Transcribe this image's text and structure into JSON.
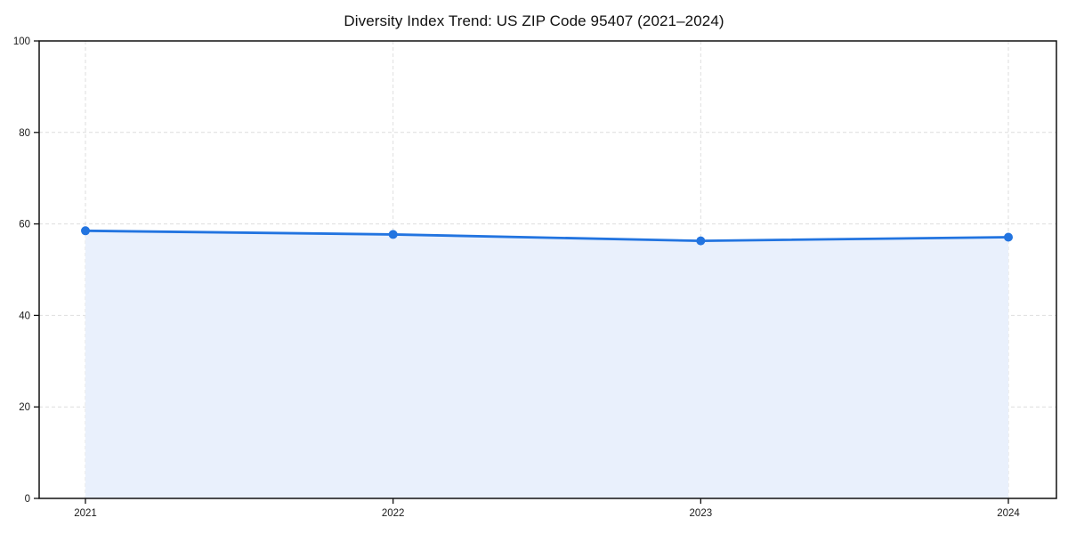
{
  "chart_data": {
    "type": "area",
    "title": "Diversity Index Trend: US ZIP Code 95407 (2021–2024)",
    "x": [
      2021,
      2022,
      2023,
      2024
    ],
    "xtick_labels": [
      "2021",
      "2022",
      "2023",
      "2024"
    ],
    "series": [
      {
        "name": "Diversity Index",
        "values": [
          58.5,
          57.7,
          56.3,
          57.1
        ]
      }
    ],
    "xlabel": "",
    "ylabel": "",
    "ylim": [
      0,
      100
    ],
    "yticks": [
      0,
      20,
      40,
      60,
      80,
      100
    ],
    "ytick_labels": [
      "0",
      "20",
      "40",
      "60",
      "80",
      "100"
    ],
    "grid": true,
    "grid_style": "dashed",
    "legend": false,
    "colors": {
      "line": "#2274e0",
      "marker": "#2274e0",
      "fill": "#e9f0fc",
      "grid": "#dedede",
      "spine": "#111111",
      "background": "#ffffff",
      "text": "#1a1a1a"
    }
  }
}
